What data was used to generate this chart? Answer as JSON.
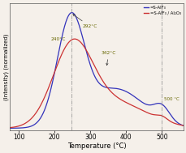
{
  "xlabel": "Temperature (°C)",
  "ylabel": "(Intensity) (normalized)",
  "xlim": [
    75,
    560
  ],
  "ylim": [
    -0.02,
    1.08
  ],
  "xticks": [
    100,
    200,
    300,
    400,
    500
  ],
  "legend_labels": [
    "=S-AlF₃",
    "=S-AlF₃ / Al₂O₃"
  ],
  "line_colors": [
    "#3333bb",
    "#cc3333"
  ],
  "annotation_color": "#666600",
  "label_240": "240°C",
  "label_292": "292°C",
  "label_342": "342°C",
  "label_500": "500 °C",
  "vline1_x": 248,
  "vline2_x": 500,
  "bg_color": "#f5f0ea",
  "plot_bg": "#f5f0ea"
}
